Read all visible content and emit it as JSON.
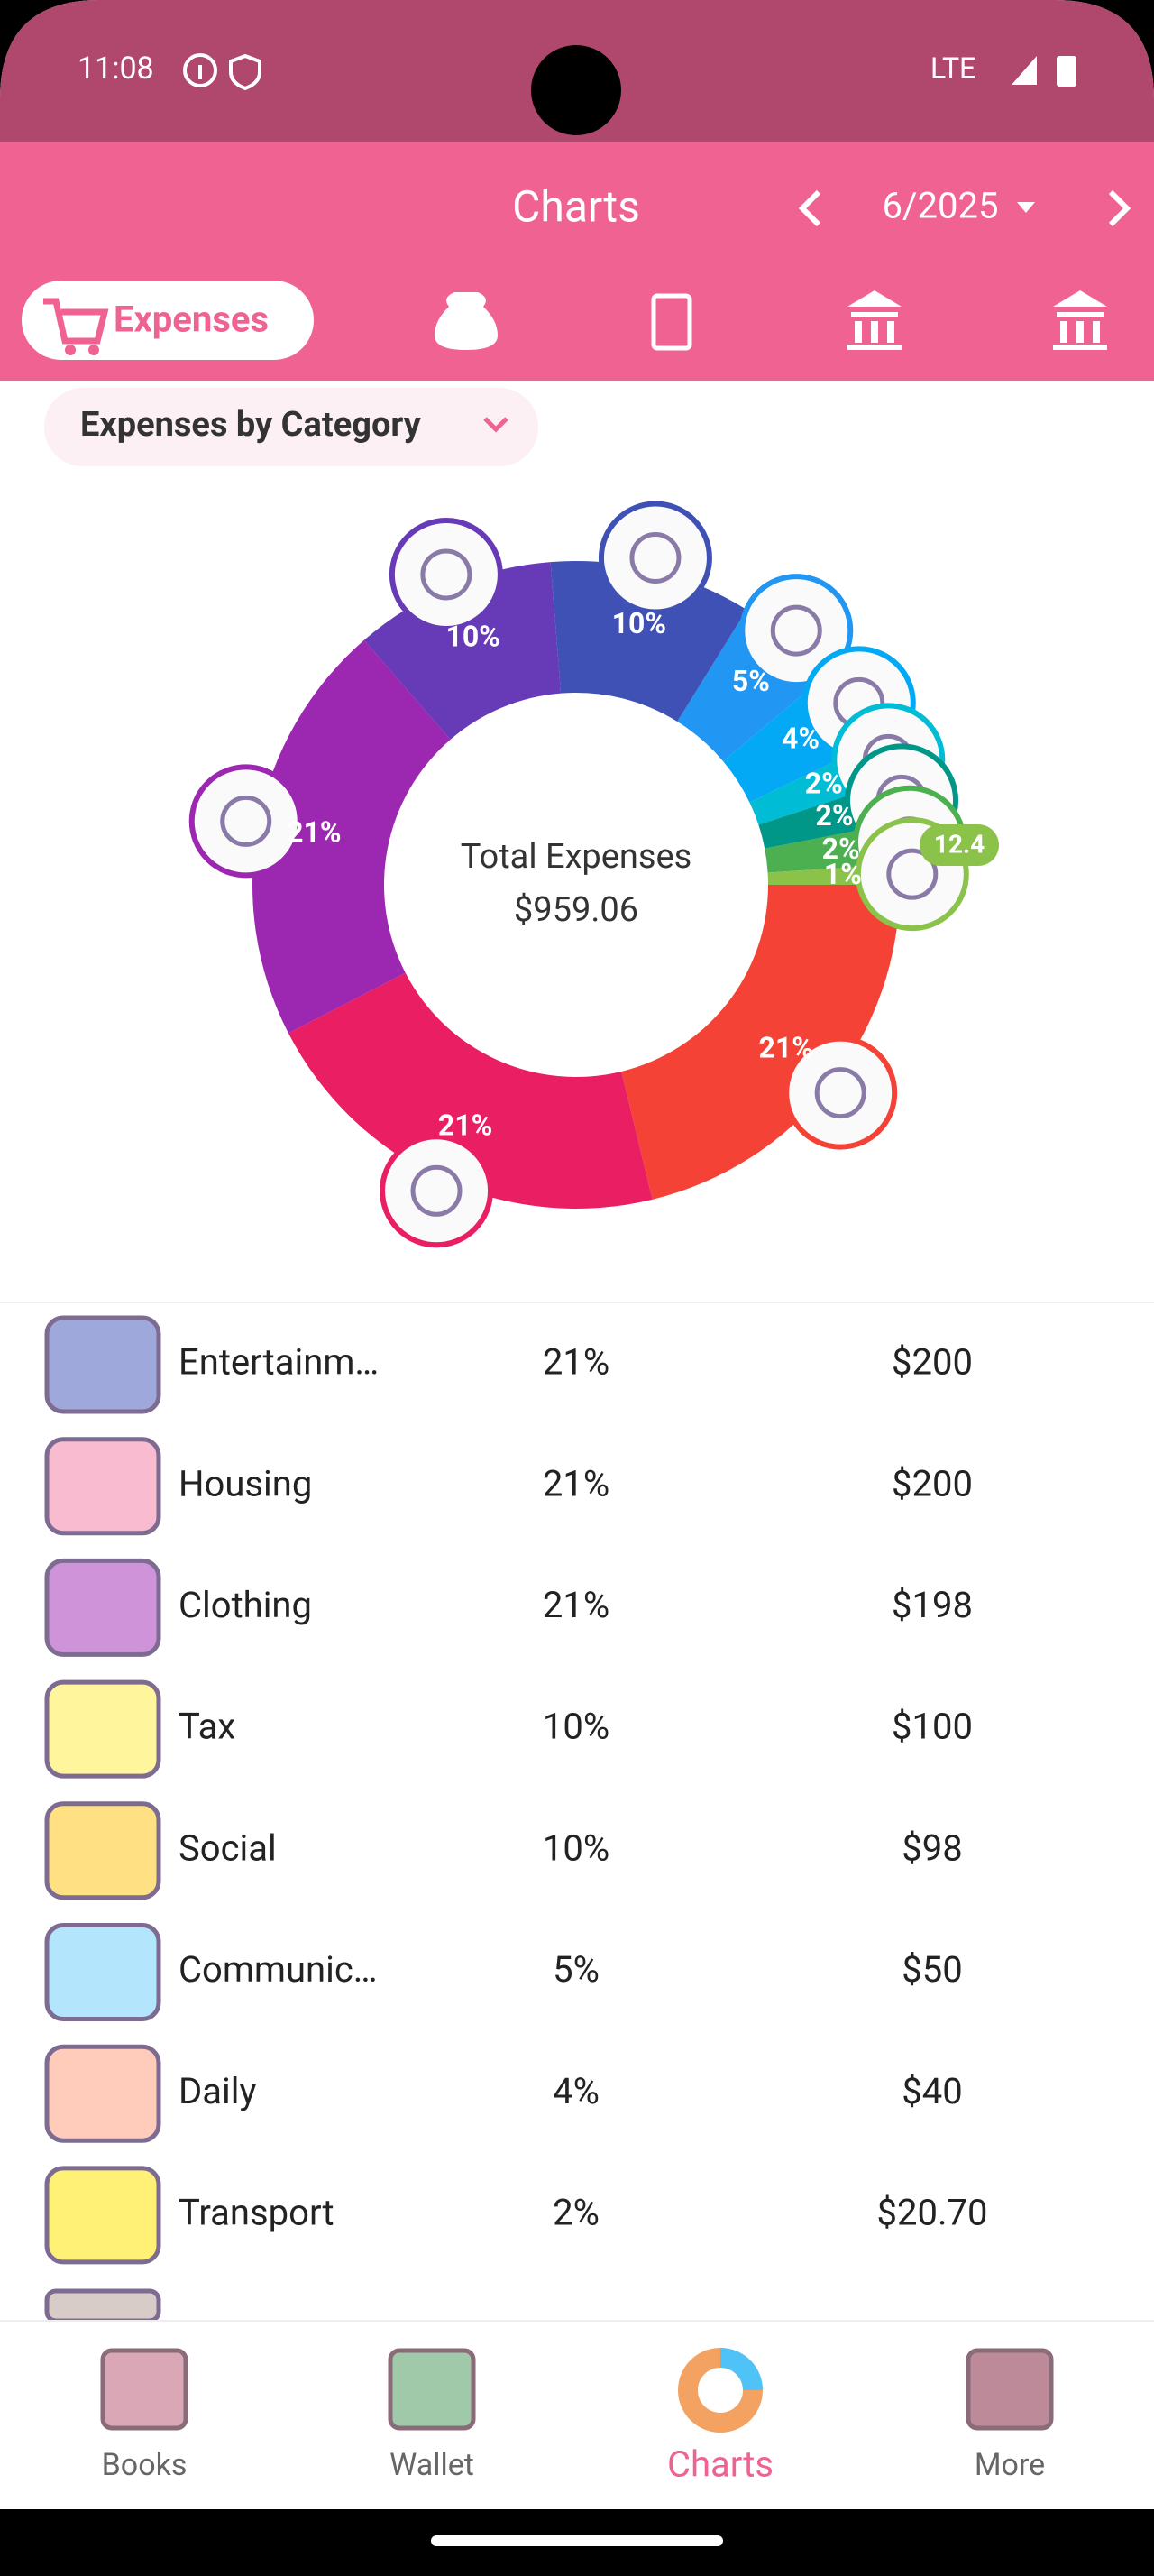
{
  "status_bar": {
    "time": "11:08",
    "network": "LTE"
  },
  "header": {
    "title": "Charts",
    "period": "6/2025"
  },
  "tabs": {
    "active_label": "Expenses"
  },
  "dropdown": {
    "label": "Expenses by Category"
  },
  "chart_data": {
    "type": "pie",
    "center_title": "Total Expenses",
    "center_value": "$959.06",
    "values": [
      21,
      21,
      21,
      10,
      10,
      5,
      4,
      2,
      2,
      2,
      1
    ],
    "value_labels": [
      "21%",
      "21%",
      "21%",
      "10%",
      "10%",
      "5%",
      "4%",
      "2%",
      "2%",
      "2%",
      "1%"
    ],
    "colors": [
      "#f44336",
      "#e91e63",
      "#9c27b0",
      "#673ab7",
      "#3f51b5",
      "#2196f3",
      "#03a9f4",
      "#00bcd4",
      "#009688",
      "#4caf50",
      "#8bc34a"
    ],
    "annotation": "12.4"
  },
  "list": {
    "rows": [
      {
        "name": "Entertainm…",
        "percent": "21%",
        "amount": "$200"
      },
      {
        "name": "Housing",
        "percent": "21%",
        "amount": "$200"
      },
      {
        "name": "Clothing",
        "percent": "21%",
        "amount": "$198"
      },
      {
        "name": "Tax",
        "percent": "10%",
        "amount": "$100"
      },
      {
        "name": "Social",
        "percent": "10%",
        "amount": "$98"
      },
      {
        "name": "Communic…",
        "percent": "5%",
        "amount": "$50"
      },
      {
        "name": "Daily",
        "percent": "4%",
        "amount": "$40"
      },
      {
        "name": "Transport",
        "percent": "2%",
        "amount": "$20.70"
      }
    ]
  },
  "nav": {
    "items": [
      "Books",
      "Wallet",
      "Charts",
      "More"
    ],
    "active": 2
  }
}
